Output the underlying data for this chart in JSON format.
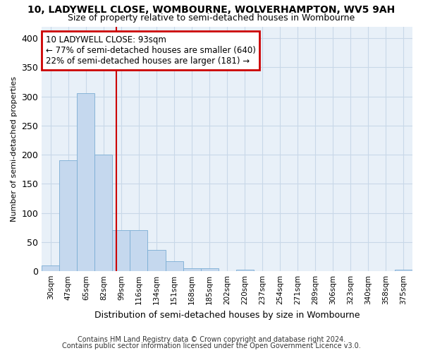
{
  "title1": "10, LADYWELL CLOSE, WOMBOURNE, WOLVERHAMPTON, WV5 9AH",
  "title2": "Size of property relative to semi-detached houses in Wombourne",
  "xlabel": "Distribution of semi-detached houses by size in Wombourne",
  "ylabel": "Number of semi-detached properties",
  "footnote1": "Contains HM Land Registry data © Crown copyright and database right 2024.",
  "footnote2": "Contains public sector information licensed under the Open Government Licence v3.0.",
  "bar_color": "#c5d8ee",
  "bar_edge_color": "#7aadd4",
  "grid_color": "#c8d8e8",
  "background_color": "#e8f0f8",
  "annotation_box_color": "#cc0000",
  "property_line_color": "#cc0000",
  "property_size": 93,
  "annotation_title": "10 LADYWELL CLOSE: 93sqm",
  "annotation_line1": "← 77% of semi-detached houses are smaller (640)",
  "annotation_line2": "22% of semi-detached houses are larger (181) →",
  "categories": [
    "30sqm",
    "47sqm",
    "65sqm",
    "82sqm",
    "99sqm",
    "116sqm",
    "134sqm",
    "151sqm",
    "168sqm",
    "185sqm",
    "202sqm",
    "220sqm",
    "237sqm",
    "254sqm",
    "271sqm",
    "289sqm",
    "306sqm",
    "323sqm",
    "340sqm",
    "358sqm",
    "375sqm"
  ],
  "values": [
    10,
    190,
    305,
    200,
    70,
    70,
    36,
    17,
    5,
    5,
    0,
    3,
    0,
    0,
    0,
    0,
    0,
    0,
    0,
    0,
    3
  ],
  "ylim": [
    0,
    420
  ],
  "yticks": [
    0,
    50,
    100,
    150,
    200,
    250,
    300,
    350,
    400
  ]
}
